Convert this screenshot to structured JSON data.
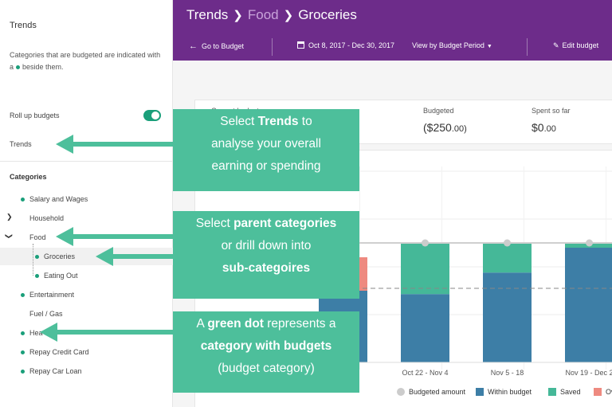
{
  "sidebar": {
    "title": "Trends",
    "description_pre": "Categories that are budgeted are indicated with a",
    "description_post": "beside them.",
    "rollup_label": "Roll up budgets",
    "rollup_on": true,
    "trends_link": "Trends",
    "categories_heading": "Categories",
    "categories": [
      {
        "label": "Salary and Wages",
        "budgeted": true
      },
      {
        "label": "Household",
        "budgeted": false,
        "expandable": true
      },
      {
        "label": "Food",
        "budgeted": false,
        "expanded": true
      },
      {
        "label": "Groceries",
        "budgeted": true,
        "selected": true
      },
      {
        "label": "Eating Out",
        "budgeted": true
      },
      {
        "label": "Entertainment",
        "budgeted": true
      },
      {
        "label": "Fuel / Gas",
        "budgeted": false
      },
      {
        "label": "Hea",
        "budgeted": true
      },
      {
        "label": "Repay Credit Card",
        "budgeted": true
      },
      {
        "label": "Repay Car Loan",
        "budgeted": true
      }
    ]
  },
  "header": {
    "crumbs": [
      "Trends",
      "Food",
      "Groceries"
    ],
    "go_to_budget": "Go to Budget",
    "date_range": "Oct 8, 2017 - Dec 30, 2017",
    "view_by": "View by Budget Period",
    "edit_budget": "Edit budget"
  },
  "summary": {
    "current_budget_label": "Current budget",
    "budgeted_label": "Budgeted",
    "budgeted_value_main": "($250",
    "budgeted_value_cents": ".00)",
    "spent_label": "Spent so far",
    "spent_value_main": "$0",
    "spent_value_cents": ".00"
  },
  "chart_data": {
    "type": "bar",
    "categories": [
      "",
      "Oct 22 - Nov 4",
      "Nov 5 - 18",
      "Nov 19 - Dec 2"
    ],
    "budgeted_amount_visible": true,
    "series": [
      {
        "name": "Within budget",
        "values": [
          150,
          143,
          188,
          240
        ]
      },
      {
        "name": "Saved",
        "values": [
          0,
          107,
          62,
          10
        ]
      },
      {
        "name": "Over",
        "values": [
          70,
          0,
          0,
          0
        ]
      }
    ],
    "budget_line": 250,
    "average_line": 155,
    "legend": [
      "Budgeted amount",
      "Within budget",
      "Saved",
      "Over"
    ],
    "colors": {
      "within": "#3d7ea6",
      "saved": "#45b898",
      "over": "#ee8a80",
      "budget": "#cccccc"
    }
  },
  "callouts": {
    "trends": {
      "pre": "Select ",
      "bold": "Trends",
      "post": " to",
      "line2": "analyse your overall",
      "line3": "earning or spending"
    },
    "parent": {
      "bold1": "parent categories",
      "pre1": "Select ",
      "line2": "or drill down into",
      "bold3": "sub-categoires"
    },
    "dot": {
      "pre": "A ",
      "bold": "green dot",
      "post": " represents a",
      "bold2": "category with budgets",
      "line3": "(budget category)"
    }
  },
  "colors": {
    "header": "#6d2c8a",
    "accent_green": "#1a9f7a",
    "callout": "#4dbf9b"
  }
}
